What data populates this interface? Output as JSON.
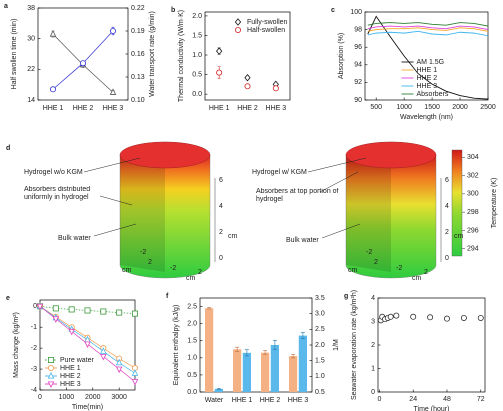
{
  "chart_data": [
    {
      "type": "line",
      "label": "a",
      "categories": [
        "HHE 1",
        "HHE 2",
        "HHE 3"
      ],
      "ylabel": "Half swollen time (min)",
      "y2label": "Water transport rate (g/min)",
      "ylim": [
        14,
        38
      ],
      "yticks": [
        14,
        22,
        30,
        38
      ],
      "y2lim": [
        0.1,
        0.22
      ],
      "y2ticks": [
        {
          "value": 0.1,
          "label": "0.10"
        },
        0.13,
        0.16,
        0.19,
        0.22
      ],
      "series": [
        {
          "color": "#555555",
          "marker": "triangle",
          "line": "solid",
          "values": [
            31.2,
            23.2,
            16.0
          ],
          "errors": [
            0.8,
            0.7,
            0.5
          ]
        },
        {
          "color": "#3030d0",
          "marker": "circle",
          "line": "solid",
          "axis": "y2",
          "values": [
            0.114,
            0.148,
            0.19
          ],
          "errors": [
            0.002,
            0.003,
            0.005
          ]
        }
      ]
    },
    {
      "type": "scatter",
      "label": "b",
      "categories": [
        "HHE 1",
        "HHE 2",
        "HHE 3"
      ],
      "ylabel": "Thermal conductivity (W/m·K)",
      "ylim": [
        -0.15,
        2.1
      ],
      "yticks": [
        {
          "value": 0,
          "label": "0.0"
        },
        0.5,
        {
          "value": 1,
          "label": "1.0"
        },
        1.5,
        {
          "value": 2,
          "label": "2.0"
        }
      ],
      "legend": "upper right",
      "series": [
        {
          "name": "Fully-swollen",
          "color": "#111111",
          "marker": "diamond",
          "values": [
            1.1,
            0.42,
            0.25
          ],
          "errors": [
            0.08,
            0.04,
            0.04
          ]
        },
        {
          "name": "Half-swollen",
          "color": "#d02020",
          "marker": "circle",
          "values": [
            0.55,
            0.2,
            0.15
          ],
          "errors": [
            0.15,
            0.03,
            0.03
          ]
        }
      ]
    },
    {
      "type": "line",
      "label": "c",
      "xlabel": "Wavelength (nm)",
      "ylabel": "Absorption (%)",
      "x": [
        350,
        500,
        750,
        1000,
        1250,
        1500,
        1750,
        2000,
        2250,
        2500
      ],
      "xlim": [
        300,
        2500
      ],
      "xticks": [
        500,
        1000,
        1500,
        2000,
        2500
      ],
      "ylim": [
        90,
        100
      ],
      "yticks": [
        90,
        92,
        94,
        96,
        98,
        100
      ],
      "legend": "lower center",
      "series": [
        {
          "name": "AM 1.5G",
          "color": "#111111",
          "line": "solid",
          "values": [
            97.5,
            99.5,
            97.2,
            95.0,
            93.0,
            91.8,
            91.0,
            90.5,
            90.2,
            90.1
          ]
        },
        {
          "name": "HHE 1",
          "color": "#f5a623",
          "line": "solid",
          "values": [
            97.8,
            98.0,
            98.1,
            98.1,
            98.2,
            98.0,
            97.9,
            98.2,
            98.1,
            97.8
          ]
        },
        {
          "name": "HHE 2",
          "color": "#e040e0",
          "line": "solid",
          "values": [
            98.1,
            98.3,
            98.4,
            98.3,
            98.4,
            98.2,
            98.1,
            98.4,
            98.3,
            98.0
          ]
        },
        {
          "name": "HHE 3",
          "color": "#3fb6ef",
          "line": "solid",
          "values": [
            97.4,
            97.6,
            97.7,
            97.6,
            97.8,
            97.5,
            97.4,
            97.7,
            97.6,
            97.3
          ]
        },
        {
          "name": "Absorbers",
          "color": "#2e7d32",
          "line": "solid",
          "values": [
            98.5,
            98.7,
            98.8,
            98.7,
            98.8,
            98.6,
            98.5,
            98.8,
            98.7,
            98.4
          ]
        }
      ]
    },
    {
      "type": "line",
      "label": "e",
      "xlabel": "Time(min)",
      "ylabel": "Mass change (kg/m²)",
      "x": [
        0,
        600,
        1200,
        1800,
        2400,
        3000,
        3600
      ],
      "xlim": [
        0,
        3600
      ],
      "xticks": [
        0,
        1000,
        2000,
        3000
      ],
      "ylim": [
        -4,
        0.3
      ],
      "yticks": [
        -4,
        -3,
        -2,
        -1,
        0
      ],
      "legend": "lower left",
      "series": [
        {
          "name": "Pure water",
          "color": "#3a9a3a",
          "marker": "square",
          "line": "dotted",
          "values": [
            0,
            -0.1,
            -0.15,
            -0.2,
            -0.25,
            -0.3,
            -0.35
          ]
        },
        {
          "name": "HHE 1",
          "color": "#f39c4a",
          "marker": "circle",
          "line": "solid",
          "values": [
            0,
            -0.5,
            -1.0,
            -1.5,
            -2.0,
            -2.5,
            -2.95
          ]
        },
        {
          "name": "HHE 2",
          "color": "#49b6e8",
          "marker": "triangle",
          "line": "solid",
          "values": [
            0,
            -0.55,
            -1.1,
            -1.6,
            -2.15,
            -2.7,
            -3.2
          ]
        },
        {
          "name": "HHE 3",
          "color": "#e040c0",
          "marker": "triangle-down",
          "line": "solid",
          "values": [
            0,
            -0.6,
            -1.2,
            -1.8,
            -2.4,
            -3.0,
            -3.6
          ]
        }
      ]
    },
    {
      "type": "bar",
      "label": "f",
      "categories": [
        "Water",
        "HHE 1",
        "HHE 2",
        "HHE 3"
      ],
      "ylabel": "Equivalent enthalpy (kJ/g)",
      "y2label": "1/M",
      "ylim": [
        0,
        2.75
      ],
      "yticks": [
        {
          "value": 0,
          "label": "0.0"
        },
        0.5,
        {
          "value": 1,
          "label": "1.0"
        },
        1.5,
        {
          "value": 2,
          "label": "2.0"
        },
        2.5
      ],
      "y2lim": [
        0.5,
        3.5
      ],
      "y2ticks": [
        0.5,
        {
          "value": 1,
          "label": "1.0"
        },
        1.5,
        {
          "value": 2,
          "label": "2.0"
        },
        2.5,
        {
          "value": 3,
          "label": "3.0"
        },
        3.5
      ],
      "series": [
        {
          "color": "#f4b183",
          "values": [
            2.45,
            1.25,
            1.15,
            1.05
          ],
          "errors": [
            0.02,
            0.06,
            0.06,
            0.05
          ]
        },
        {
          "color": "#5bb8ea",
          "axis": "y2",
          "values": [
            0.6,
            1.75,
            2.0,
            2.3
          ],
          "errors": [
            0.02,
            0.1,
            0.15,
            0.1
          ]
        }
      ]
    },
    {
      "type": "scatter",
      "label": "g",
      "xlabel": "Time (hour)",
      "ylabel": "Seawater evaporation rate (kg/m²h)",
      "x": [
        1,
        2,
        4,
        6,
        8,
        12,
        24,
        36,
        48,
        60,
        72
      ],
      "xlim": [
        -1,
        75
      ],
      "xticks": [
        0,
        24,
        48,
        72
      ],
      "ylim": [
        0,
        4
      ],
      "yticks": [
        0,
        1,
        2,
        3,
        4
      ],
      "series": [
        {
          "color": "#333333",
          "marker": "circle",
          "values": [
            3.05,
            3.2,
            3.1,
            3.15,
            3.2,
            3.25,
            3.2,
            3.18,
            3.12,
            3.15,
            3.15
          ]
        }
      ]
    }
  ],
  "diagram": {
    "label": "d",
    "left": {
      "callouts": [
        "Hydrogel w/o KGM",
        "Absorbers distributed uniformly in hydrogel",
        "Bulk water"
      ]
    },
    "right": {
      "callouts": [
        "Hydrogel w/ KGM",
        "Absorbers at top portion of hydrogel",
        "Bulk water"
      ]
    },
    "axis_unit": "cm",
    "z_ticks": [
      0,
      2,
      4,
      6
    ],
    "x_ticks": [
      -2,
      2
    ],
    "y_ticks": [
      -2,
      2
    ],
    "colorbar": {
      "title": "Temperature (K)",
      "clim": [
        293.2,
        304.8
      ],
      "ticks": [
        294,
        296,
        298,
        300,
        302,
        304
      ]
    }
  }
}
